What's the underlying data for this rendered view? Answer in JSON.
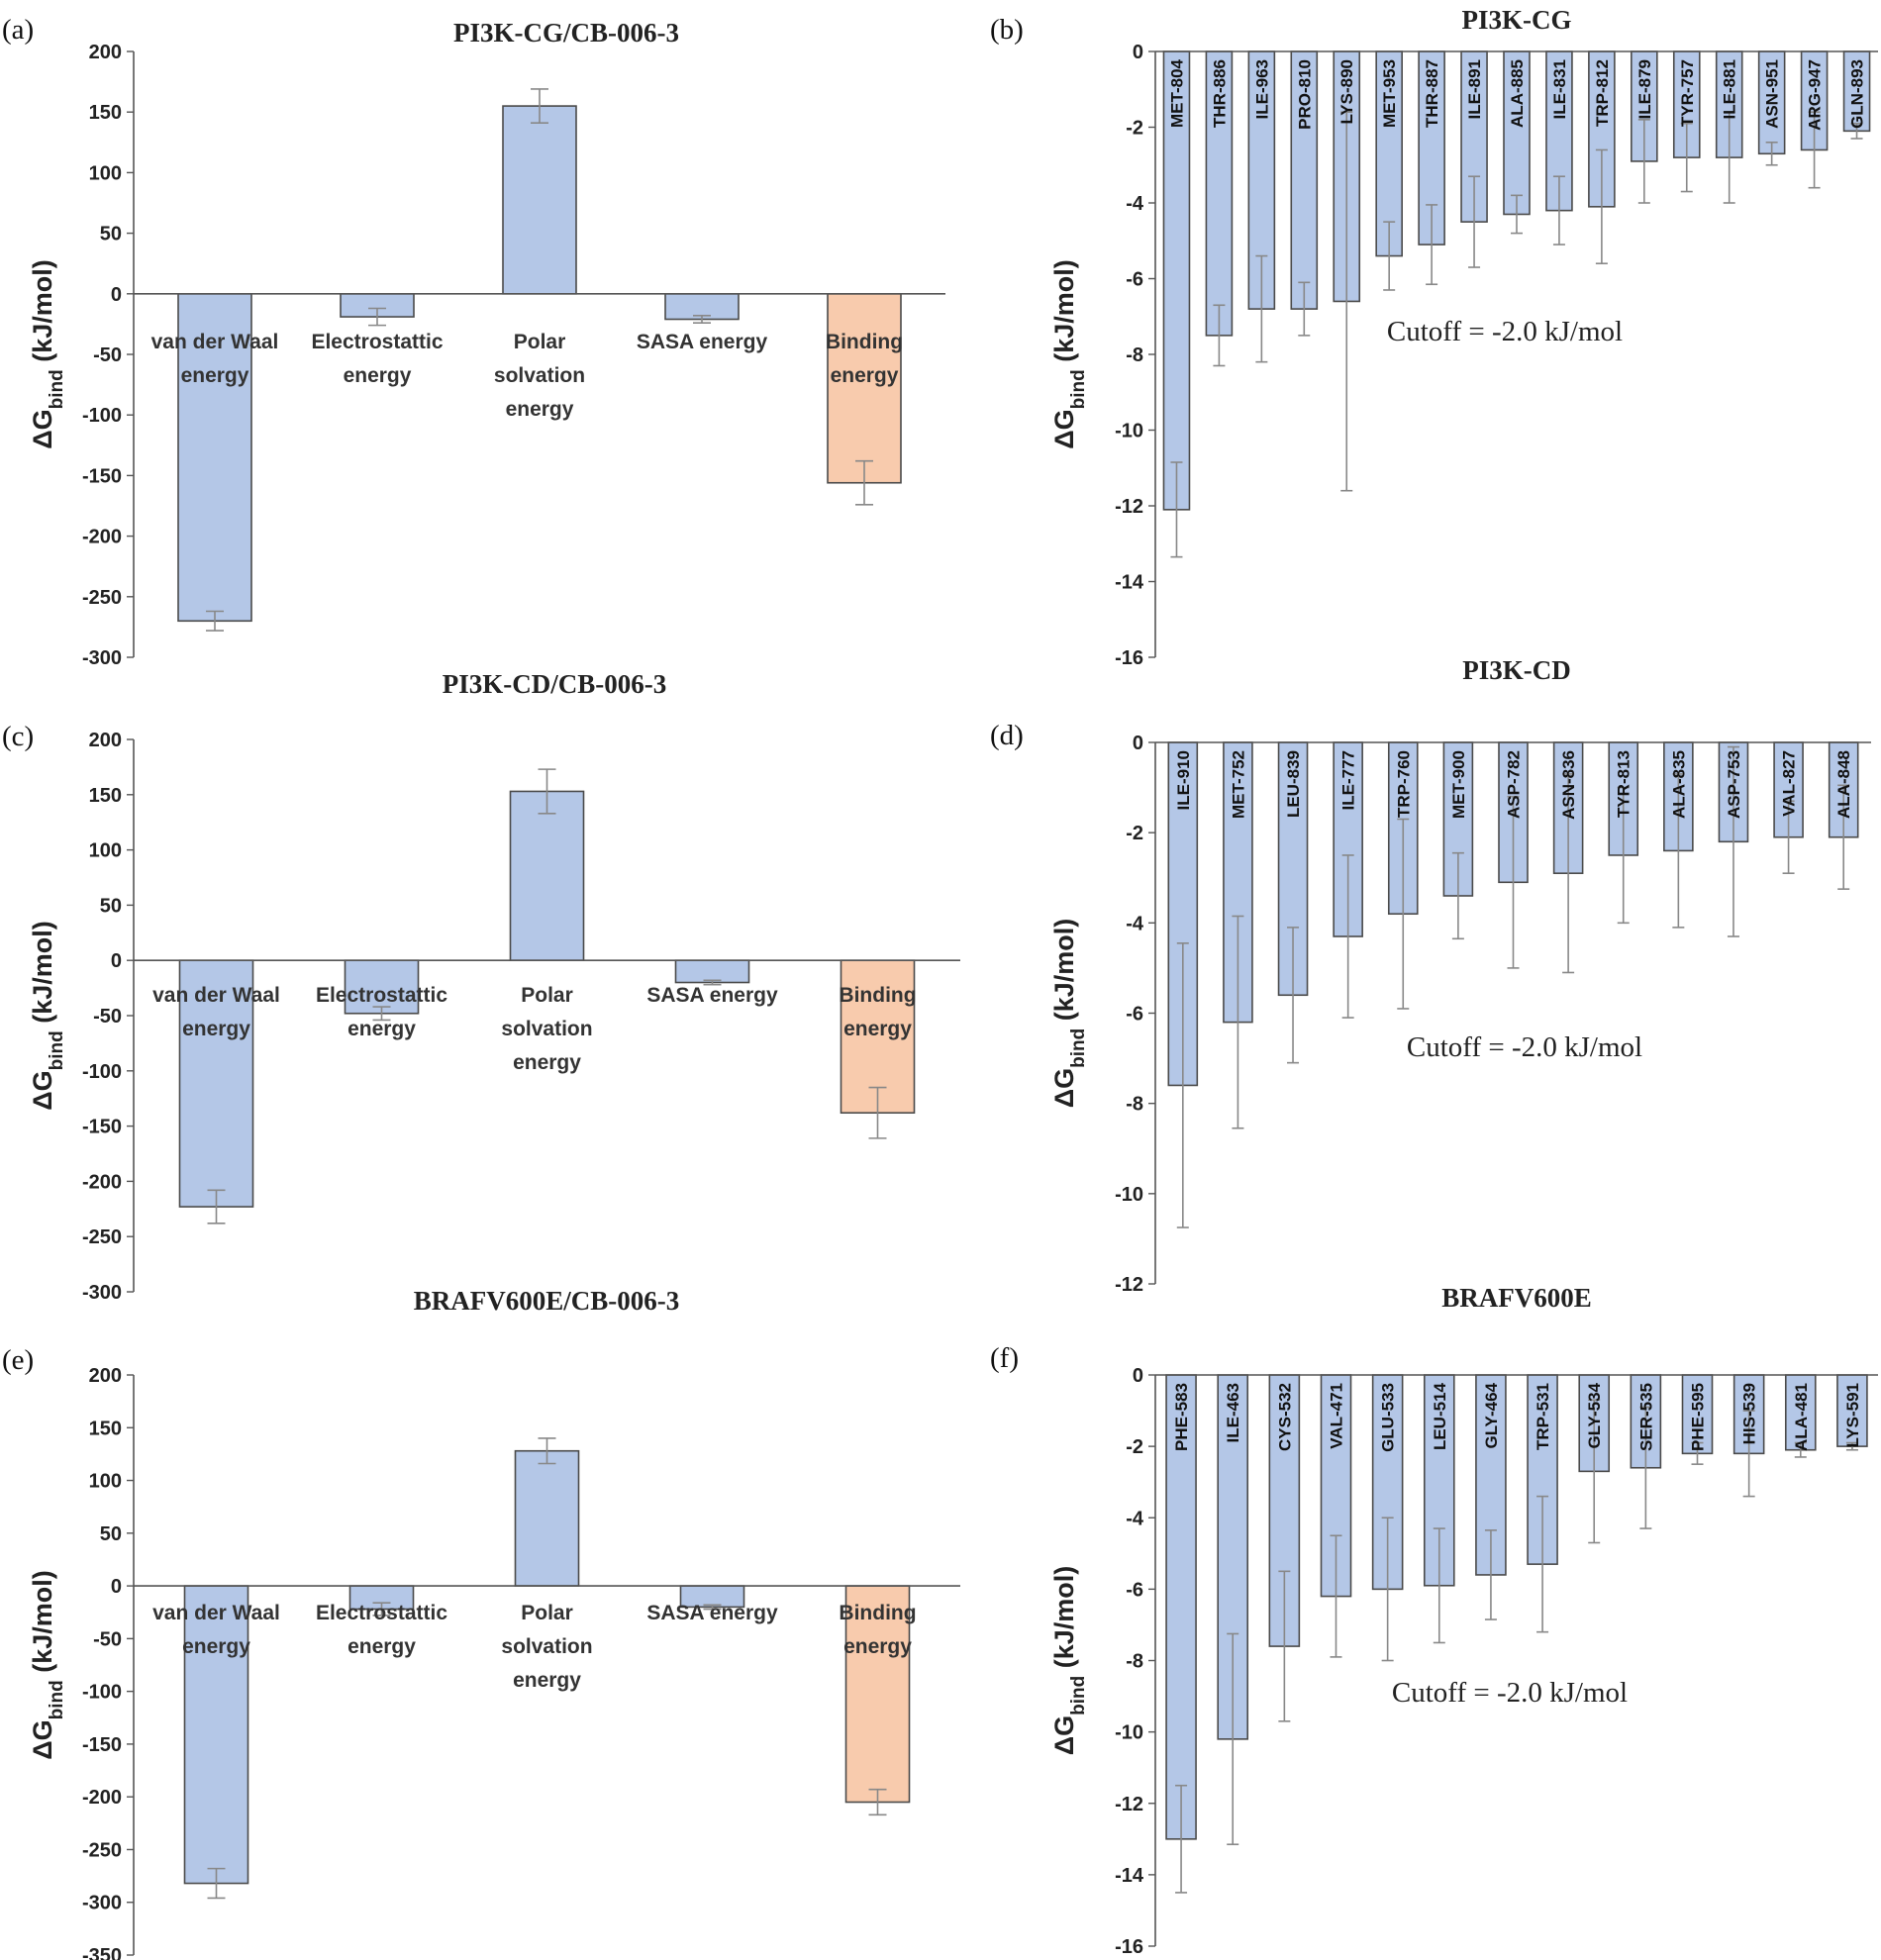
{
  "chart_data": [
    {
      "id": "a",
      "panel_label": "(a)",
      "type": "bar",
      "title": "PI3K-CG/CB-006-3",
      "ylabel_main": "ΔG",
      "ylabel_sub": "bind",
      "ylabel_units": " (kJ/mol)",
      "ylim": [
        -300,
        200
      ],
      "yticks": [
        200,
        150,
        100,
        50,
        0,
        -50,
        -100,
        -150,
        -200,
        -250,
        -300
      ],
      "categories": [
        [
          "van der Waal",
          "energy"
        ],
        [
          "Electrostattic",
          "energy"
        ],
        [
          "Polar",
          "solvation",
          "energy"
        ],
        [
          "SASA energy"
        ],
        [
          "Binding",
          "energy"
        ]
      ],
      "values": [
        -270,
        -19,
        155,
        -21,
        -156
      ],
      "errors": [
        8,
        7,
        14,
        3,
        18
      ],
      "colors": [
        "#b4c7e7",
        "#b4c7e7",
        "#b4c7e7",
        "#b4c7e7",
        "#f8cbad"
      ]
    },
    {
      "id": "b",
      "panel_label": "(b)",
      "type": "bar",
      "title": "PI3K-CG",
      "ylabel_main": "ΔG",
      "ylabel_sub": "bind",
      "ylabel_units": " (kJ/mol)",
      "ylim": [
        -16,
        0
      ],
      "yticks": [
        0,
        -2,
        -4,
        -6,
        -8,
        -10,
        -12,
        -14,
        -16
      ],
      "categories": [
        "MET-804",
        "THR-886",
        "ILE-963",
        "PRO-810",
        "LYS-890",
        "MET-953",
        "THR-887",
        "ILE-891",
        "ALA-885",
        "ILE-831",
        "TRP-812",
        "ILE-879",
        "TYR-757",
        "ILE-881",
        "ASN-951",
        "ARG-947",
        "GLN-893"
      ],
      "values": [
        -12.1,
        -7.5,
        -6.8,
        -6.8,
        -6.6,
        -5.4,
        -5.1,
        -4.5,
        -4.3,
        -4.2,
        -4.1,
        -2.9,
        -2.8,
        -2.8,
        -2.7,
        -2.6,
        -2.1
      ],
      "errors": [
        1.25,
        0.8,
        1.4,
        0.7,
        5.0,
        0.9,
        1.05,
        1.2,
        0.5,
        0.9,
        1.5,
        1.1,
        0.9,
        1.2,
        0.3,
        1.0,
        0.2
      ],
      "annotation": "Cutoff = -2.0 kJ/mol"
    },
    {
      "id": "c",
      "panel_label": "(c)",
      "type": "bar",
      "title": "PI3K-CD/CB-006-3",
      "ylabel_main": "ΔG",
      "ylabel_sub": "bind",
      "ylabel_units": " (kJ/mol)",
      "ylim": [
        -300,
        200
      ],
      "yticks": [
        200,
        150,
        100,
        50,
        0,
        -50,
        -100,
        -150,
        -200,
        -250,
        -300
      ],
      "categories": [
        [
          "van der Waal",
          "energy"
        ],
        [
          "Electrostattic",
          "energy"
        ],
        [
          "Polar",
          "solvation",
          "energy"
        ],
        [
          "SASA energy"
        ],
        [
          "Binding",
          "energy"
        ]
      ],
      "values": [
        -223,
        -48,
        153,
        -20,
        -138
      ],
      "errors": [
        15,
        6,
        20,
        2,
        23
      ],
      "colors": [
        "#b4c7e7",
        "#b4c7e7",
        "#b4c7e7",
        "#b4c7e7",
        "#f8cbad"
      ]
    },
    {
      "id": "d",
      "panel_label": "(d)",
      "type": "bar",
      "title": "PI3K-CD",
      "ylabel_main": "ΔG",
      "ylabel_sub": "bind",
      "ylabel_units": " (kJ/mol)",
      "ylim": [
        -12,
        0
      ],
      "yticks": [
        0,
        -2,
        -4,
        -6,
        -8,
        -10,
        -12
      ],
      "categories": [
        "ILE-910",
        "MET-752",
        "LEU-839",
        "ILE-777",
        "TRP-760",
        "MET-900",
        "ASP-782",
        "ASN-836",
        "TYR-813",
        "ALA-835",
        "ASP-753",
        "VAL-827",
        "ALA-848"
      ],
      "values": [
        -7.6,
        -6.2,
        -5.6,
        -4.3,
        -3.8,
        -3.4,
        -3.1,
        -2.9,
        -2.5,
        -2.4,
        -2.2,
        -2.1,
        -2.1
      ],
      "errors": [
        3.15,
        2.35,
        1.5,
        1.8,
        2.1,
        0.95,
        1.9,
        2.2,
        1.5,
        1.7,
        2.1,
        0.8,
        1.15
      ],
      "annotation": "Cutoff = -2.0 kJ/mol"
    },
    {
      "id": "e",
      "panel_label": "(e)",
      "type": "bar",
      "title": "BRAFV600E/CB-006-3",
      "ylabel_main": "ΔG",
      "ylabel_sub": "bind",
      "ylabel_units": " (kJ/mol)",
      "ylim": [
        -350,
        200
      ],
      "yticks": [
        200,
        150,
        100,
        50,
        0,
        -50,
        -100,
        -150,
        -200,
        -250,
        -300,
        -350
      ],
      "categories": [
        [
          "van der Waal",
          "energy"
        ],
        [
          "Electrostattic",
          "energy"
        ],
        [
          "Polar",
          "solvation",
          "energy"
        ],
        [
          "SASA energy"
        ],
        [
          "Binding",
          "energy"
        ]
      ],
      "values": [
        -282,
        -22,
        128,
        -20,
        -205
      ],
      "errors": [
        14,
        6,
        12,
        2,
        12
      ],
      "colors": [
        "#b4c7e7",
        "#b4c7e7",
        "#b4c7e7",
        "#b4c7e7",
        "#f8cbad"
      ]
    },
    {
      "id": "f",
      "panel_label": "(f)",
      "type": "bar",
      "title": "BRAFV600E",
      "ylabel_main": "ΔG",
      "ylabel_sub": "bind",
      "ylabel_units": " (kJ/mol)",
      "ylim": [
        -16,
        0
      ],
      "yticks": [
        0,
        -2,
        -4,
        -6,
        -8,
        -10,
        -12,
        -14,
        -16
      ],
      "categories": [
        "PHE-583",
        "ILE-463",
        "CYS-532",
        "VAL-471",
        "GLU-533",
        "LEU-514",
        "GLY-464",
        "TRP-531",
        "GLY-534",
        "SER-535",
        "PHE-595",
        "HIS-539",
        "ALA-481",
        "LYS-591"
      ],
      "values": [
        -13.0,
        -10.2,
        -7.6,
        -6.2,
        -6.0,
        -5.9,
        -5.6,
        -5.3,
        -2.7,
        -2.6,
        -2.2,
        -2.2,
        -2.1,
        -2.0
      ],
      "errors": [
        1.5,
        2.95,
        2.1,
        1.7,
        2.0,
        1.6,
        1.25,
        1.9,
        2.0,
        1.7,
        0.3,
        1.2,
        0.2,
        0.1
      ],
      "annotation": "Cutoff = -2.0 kJ/mol"
    }
  ]
}
